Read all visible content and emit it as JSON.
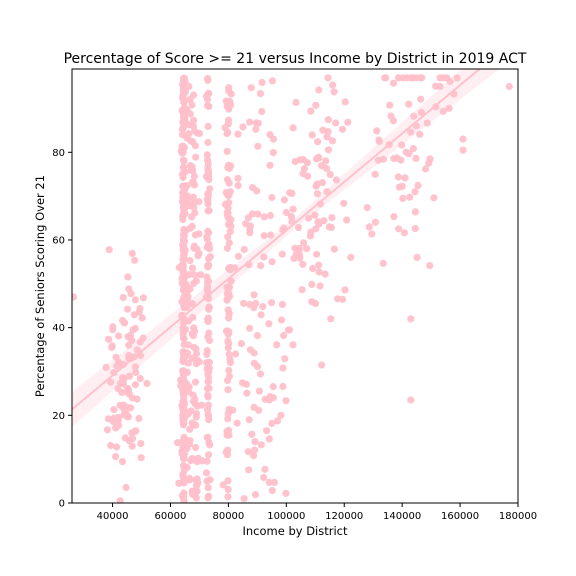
{
  "chart_data": {
    "type": "scatter",
    "title": "Percentage of Score >= 21 versus Income by District in 2019 ACT",
    "xlabel": "Income by District",
    "ylabel": "Percentage of Seniors Scoring Over 21",
    "xlim": [
      26000,
      180000
    ],
    "ylim": [
      0,
      99
    ],
    "xticks": [
      40000,
      60000,
      80000,
      100000,
      120000,
      140000,
      160000,
      180000
    ],
    "yticks": [
      0,
      20,
      40,
      60,
      80
    ],
    "color": "#ffc0cb",
    "regression": {
      "slope": 0.000552,
      "intercept": 7.0,
      "ci_half_width": 3.5
    },
    "random_seed": 2019,
    "n_points": 900
  }
}
